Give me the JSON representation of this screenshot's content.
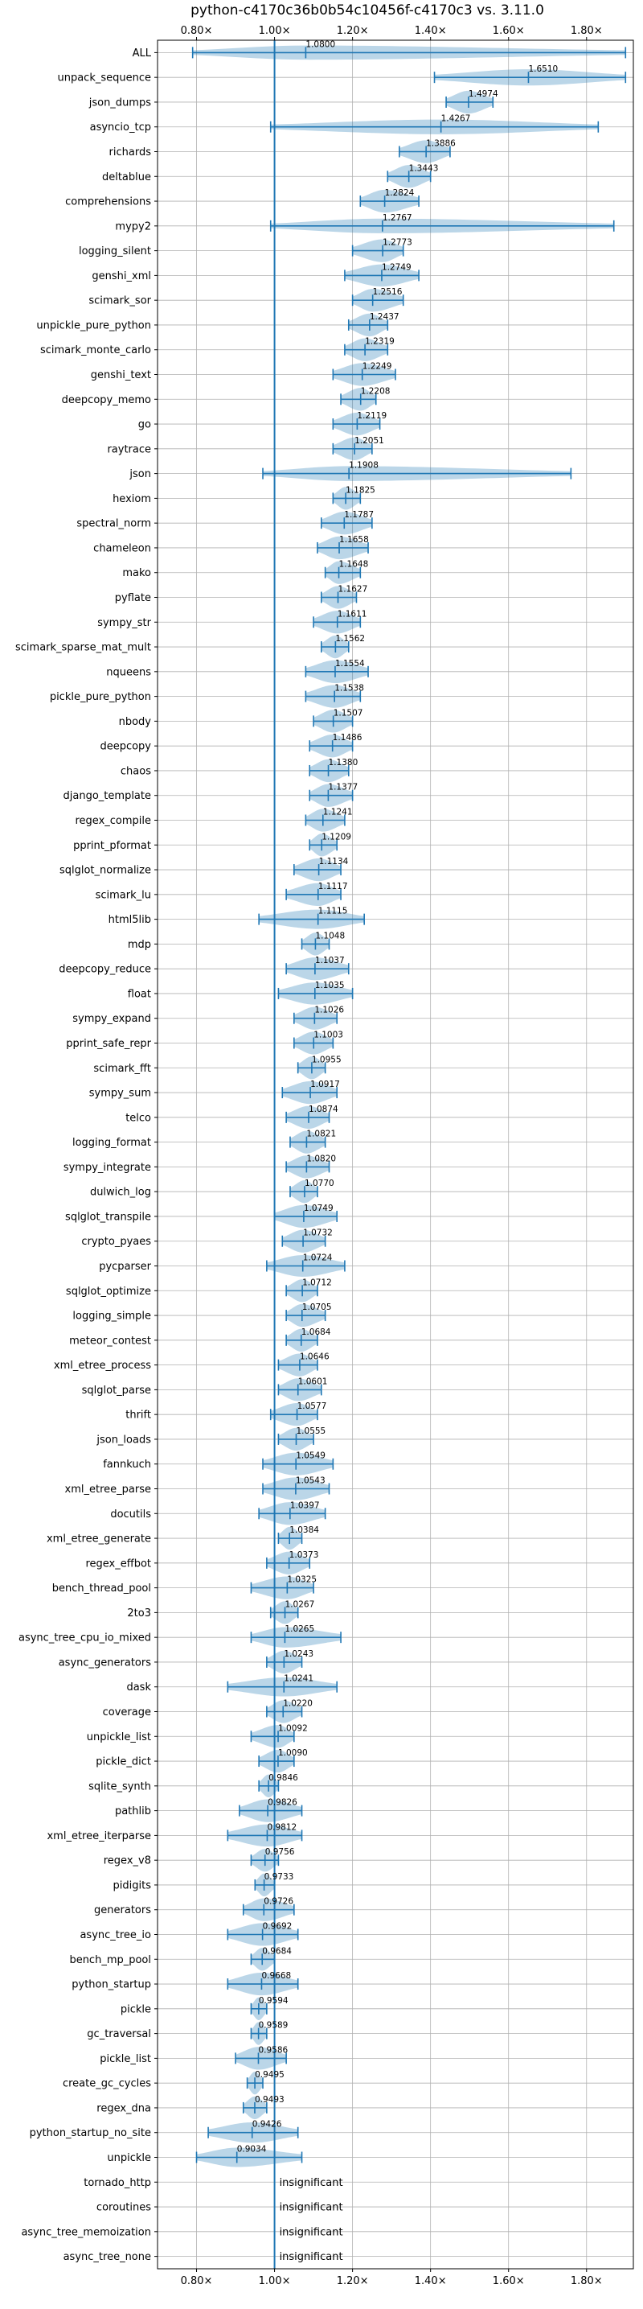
{
  "chart_data": {
    "type": "violin",
    "title": "python-c4170c36b0b54c10456f-c4170c3 vs. 3.11.0",
    "x_ticks": [
      "0.80×",
      "1.00×",
      "1.20×",
      "1.40×",
      "1.60×",
      "1.80×"
    ],
    "x_tick_values": [
      0.8,
      1.0,
      1.2,
      1.4,
      1.6,
      1.8
    ],
    "xlim": [
      0.7,
      1.92
    ],
    "reference_value": 1.0,
    "insignificant_text": "insignificant",
    "colors": {
      "violin": "#1f77b4",
      "grid": "#b0b0b0"
    },
    "benchmarks": [
      {
        "name": "ALL",
        "mean": 1.08,
        "min": 0.79,
        "max": 1.9,
        "label": "1.0800"
      },
      {
        "name": "unpack_sequence",
        "mean": 1.651,
        "min": 1.41,
        "max": 1.9,
        "label": "1.6510"
      },
      {
        "name": "json_dumps",
        "mean": 1.4974,
        "min": 1.44,
        "max": 1.56,
        "label": "1.4974"
      },
      {
        "name": "asyncio_tcp",
        "mean": 1.4267,
        "min": 0.99,
        "max": 1.83,
        "label": "1.4267"
      },
      {
        "name": "richards",
        "mean": 1.3886,
        "min": 1.32,
        "max": 1.45,
        "label": "1.3886"
      },
      {
        "name": "deltablue",
        "mean": 1.3443,
        "min": 1.29,
        "max": 1.4,
        "label": "1.3443"
      },
      {
        "name": "comprehensions",
        "mean": 1.2824,
        "min": 1.22,
        "max": 1.37,
        "label": "1.2824"
      },
      {
        "name": "mypy2",
        "mean": 1.2767,
        "min": 0.99,
        "max": 1.87,
        "label": "1.2767"
      },
      {
        "name": "logging_silent",
        "mean": 1.2773,
        "min": 1.2,
        "max": 1.33,
        "label": "1.2773"
      },
      {
        "name": "genshi_xml",
        "mean": 1.2749,
        "min": 1.18,
        "max": 1.37,
        "label": "1.2749"
      },
      {
        "name": "scimark_sor",
        "mean": 1.2516,
        "min": 1.2,
        "max": 1.33,
        "label": "1.2516"
      },
      {
        "name": "unpickle_pure_python",
        "mean": 1.2437,
        "min": 1.19,
        "max": 1.29,
        "label": "1.2437"
      },
      {
        "name": "scimark_monte_carlo",
        "mean": 1.2319,
        "min": 1.18,
        "max": 1.29,
        "label": "1.2319"
      },
      {
        "name": "genshi_text",
        "mean": 1.2249,
        "min": 1.15,
        "max": 1.31,
        "label": "1.2249"
      },
      {
        "name": "deepcopy_memo",
        "mean": 1.2208,
        "min": 1.17,
        "max": 1.26,
        "label": "1.2208"
      },
      {
        "name": "go",
        "mean": 1.2119,
        "min": 1.15,
        "max": 1.27,
        "label": "1.2119"
      },
      {
        "name": "raytrace",
        "mean": 1.2051,
        "min": 1.15,
        "max": 1.25,
        "label": "1.2051"
      },
      {
        "name": "json",
        "mean": 1.1908,
        "min": 0.97,
        "max": 1.76,
        "label": "1.1908"
      },
      {
        "name": "hexiom",
        "mean": 1.1825,
        "min": 1.15,
        "max": 1.22,
        "label": "1.1825"
      },
      {
        "name": "spectral_norm",
        "mean": 1.1787,
        "min": 1.12,
        "max": 1.25,
        "label": "1.1787"
      },
      {
        "name": "chameleon",
        "mean": 1.1658,
        "min": 1.11,
        "max": 1.24,
        "label": "1.1658"
      },
      {
        "name": "mako",
        "mean": 1.1648,
        "min": 1.13,
        "max": 1.22,
        "label": "1.1648"
      },
      {
        "name": "pyflate",
        "mean": 1.1627,
        "min": 1.12,
        "max": 1.21,
        "label": "1.1627"
      },
      {
        "name": "sympy_str",
        "mean": 1.1611,
        "min": 1.1,
        "max": 1.22,
        "label": "1.1611"
      },
      {
        "name": "scimark_sparse_mat_mult",
        "mean": 1.1562,
        "min": 1.12,
        "max": 1.19,
        "label": "1.1562"
      },
      {
        "name": "nqueens",
        "mean": 1.1554,
        "min": 1.08,
        "max": 1.24,
        "label": "1.1554"
      },
      {
        "name": "pickle_pure_python",
        "mean": 1.1538,
        "min": 1.08,
        "max": 1.22,
        "label": "1.1538"
      },
      {
        "name": "nbody",
        "mean": 1.1507,
        "min": 1.1,
        "max": 1.2,
        "label": "1.1507"
      },
      {
        "name": "deepcopy",
        "mean": 1.1486,
        "min": 1.09,
        "max": 1.2,
        "label": "1.1486"
      },
      {
        "name": "chaos",
        "mean": 1.138,
        "min": 1.09,
        "max": 1.19,
        "label": "1.1380"
      },
      {
        "name": "django_template",
        "mean": 1.1377,
        "min": 1.09,
        "max": 1.2,
        "label": "1.1377"
      },
      {
        "name": "regex_compile",
        "mean": 1.1241,
        "min": 1.08,
        "max": 1.18,
        "label": "1.1241"
      },
      {
        "name": "pprint_pformat",
        "mean": 1.1209,
        "min": 1.09,
        "max": 1.16,
        "label": "1.1209"
      },
      {
        "name": "sqlglot_normalize",
        "mean": 1.1134,
        "min": 1.05,
        "max": 1.17,
        "label": "1.1134"
      },
      {
        "name": "scimark_lu",
        "mean": 1.1117,
        "min": 1.03,
        "max": 1.17,
        "label": "1.1117"
      },
      {
        "name": "html5lib",
        "mean": 1.1115,
        "min": 0.96,
        "max": 1.23,
        "label": "1.1115"
      },
      {
        "name": "mdp",
        "mean": 1.1048,
        "min": 1.07,
        "max": 1.14,
        "label": "1.1048"
      },
      {
        "name": "deepcopy_reduce",
        "mean": 1.1037,
        "min": 1.03,
        "max": 1.19,
        "label": "1.1037"
      },
      {
        "name": "float",
        "mean": 1.1035,
        "min": 1.01,
        "max": 1.2,
        "label": "1.1035"
      },
      {
        "name": "sympy_expand",
        "mean": 1.1026,
        "min": 1.05,
        "max": 1.16,
        "label": "1.1026"
      },
      {
        "name": "pprint_safe_repr",
        "mean": 1.1003,
        "min": 1.05,
        "max": 1.15,
        "label": "1.1003"
      },
      {
        "name": "scimark_fft",
        "mean": 1.0955,
        "min": 1.06,
        "max": 1.13,
        "label": "1.0955"
      },
      {
        "name": "sympy_sum",
        "mean": 1.0917,
        "min": 1.02,
        "max": 1.16,
        "label": "1.0917"
      },
      {
        "name": "telco",
        "mean": 1.0874,
        "min": 1.03,
        "max": 1.14,
        "label": "1.0874"
      },
      {
        "name": "logging_format",
        "mean": 1.0821,
        "min": 1.04,
        "max": 1.13,
        "label": "1.0821"
      },
      {
        "name": "sympy_integrate",
        "mean": 1.082,
        "min": 1.03,
        "max": 1.14,
        "label": "1.0820"
      },
      {
        "name": "dulwich_log",
        "mean": 1.077,
        "min": 1.04,
        "max": 1.11,
        "label": "1.0770"
      },
      {
        "name": "sqlglot_transpile",
        "mean": 1.0749,
        "min": 1.0,
        "max": 1.16,
        "label": "1.0749"
      },
      {
        "name": "crypto_pyaes",
        "mean": 1.0732,
        "min": 1.02,
        "max": 1.13,
        "label": "1.0732"
      },
      {
        "name": "pycparser",
        "mean": 1.0724,
        "min": 0.98,
        "max": 1.18,
        "label": "1.0724"
      },
      {
        "name": "sqlglot_optimize",
        "mean": 1.0712,
        "min": 1.03,
        "max": 1.11,
        "label": "1.0712"
      },
      {
        "name": "logging_simple",
        "mean": 1.0705,
        "min": 1.03,
        "max": 1.13,
        "label": "1.0705"
      },
      {
        "name": "meteor_contest",
        "mean": 1.0684,
        "min": 1.03,
        "max": 1.11,
        "label": "1.0684"
      },
      {
        "name": "xml_etree_process",
        "mean": 1.0646,
        "min": 1.01,
        "max": 1.11,
        "label": "1.0646"
      },
      {
        "name": "sqlglot_parse",
        "mean": 1.0601,
        "min": 1.01,
        "max": 1.12,
        "label": "1.0601"
      },
      {
        "name": "thrift",
        "mean": 1.0577,
        "min": 0.99,
        "max": 1.11,
        "label": "1.0577"
      },
      {
        "name": "json_loads",
        "mean": 1.0555,
        "min": 1.01,
        "max": 1.1,
        "label": "1.0555"
      },
      {
        "name": "fannkuch",
        "mean": 1.0549,
        "min": 0.97,
        "max": 1.15,
        "label": "1.0549"
      },
      {
        "name": "xml_etree_parse",
        "mean": 1.0543,
        "min": 0.97,
        "max": 1.14,
        "label": "1.0543"
      },
      {
        "name": "docutils",
        "mean": 1.0397,
        "min": 0.96,
        "max": 1.13,
        "label": "1.0397"
      },
      {
        "name": "xml_etree_generate",
        "mean": 1.0384,
        "min": 1.01,
        "max": 1.07,
        "label": "1.0384"
      },
      {
        "name": "regex_effbot",
        "mean": 1.0373,
        "min": 0.98,
        "max": 1.09,
        "label": "1.0373"
      },
      {
        "name": "bench_thread_pool",
        "mean": 1.0325,
        "min": 0.94,
        "max": 1.1,
        "label": "1.0325"
      },
      {
        "name": "2to3",
        "mean": 1.0267,
        "min": 0.99,
        "max": 1.06,
        "label": "1.0267"
      },
      {
        "name": "async_tree_cpu_io_mixed",
        "mean": 1.0265,
        "min": 0.94,
        "max": 1.17,
        "label": "1.0265"
      },
      {
        "name": "async_generators",
        "mean": 1.0243,
        "min": 0.98,
        "max": 1.07,
        "label": "1.0243"
      },
      {
        "name": "dask",
        "mean": 1.0241,
        "min": 0.88,
        "max": 1.16,
        "label": "1.0241"
      },
      {
        "name": "coverage",
        "mean": 1.022,
        "min": 0.98,
        "max": 1.07,
        "label": "1.0220"
      },
      {
        "name": "unpickle_list",
        "mean": 1.0092,
        "min": 0.94,
        "max": 1.05,
        "label": "1.0092"
      },
      {
        "name": "pickle_dict",
        "mean": 1.009,
        "min": 0.96,
        "max": 1.05,
        "label": "1.0090"
      },
      {
        "name": "sqlite_synth",
        "mean": 0.9846,
        "min": 0.96,
        "max": 1.01,
        "label": "0.9846"
      },
      {
        "name": "pathlib",
        "mean": 0.9826,
        "min": 0.91,
        "max": 1.07,
        "label": "0.9826"
      },
      {
        "name": "xml_etree_iterparse",
        "mean": 0.9812,
        "min": 0.88,
        "max": 1.07,
        "label": "0.9812"
      },
      {
        "name": "regex_v8",
        "mean": 0.9756,
        "min": 0.94,
        "max": 1.01,
        "label": "0.9756"
      },
      {
        "name": "pidigits",
        "mean": 0.9733,
        "min": 0.95,
        "max": 1.0,
        "label": "0.9733"
      },
      {
        "name": "generators",
        "mean": 0.9726,
        "min": 0.92,
        "max": 1.05,
        "label": "0.9726"
      },
      {
        "name": "async_tree_io",
        "mean": 0.9692,
        "min": 0.88,
        "max": 1.06,
        "label": "0.9692"
      },
      {
        "name": "bench_mp_pool",
        "mean": 0.9684,
        "min": 0.94,
        "max": 1.0,
        "label": "0.9684"
      },
      {
        "name": "python_startup",
        "mean": 0.9668,
        "min": 0.88,
        "max": 1.06,
        "label": "0.9668"
      },
      {
        "name": "pickle",
        "mean": 0.9594,
        "min": 0.94,
        "max": 0.98,
        "label": "0.9594"
      },
      {
        "name": "gc_traversal",
        "mean": 0.9589,
        "min": 0.94,
        "max": 0.98,
        "label": "0.9589"
      },
      {
        "name": "pickle_list",
        "mean": 0.9586,
        "min": 0.9,
        "max": 1.03,
        "label": "0.9586"
      },
      {
        "name": "create_gc_cycles",
        "mean": 0.9495,
        "min": 0.93,
        "max": 0.97,
        "label": "0.9495"
      },
      {
        "name": "regex_dna",
        "mean": 0.9493,
        "min": 0.92,
        "max": 0.98,
        "label": "0.9493"
      },
      {
        "name": "python_startup_no_site",
        "mean": 0.9426,
        "min": 0.83,
        "max": 1.06,
        "label": "0.9426"
      },
      {
        "name": "unpickle",
        "mean": 0.9034,
        "min": 0.8,
        "max": 1.07,
        "label": "0.9034"
      },
      {
        "name": "tornado_http",
        "insignificant": true
      },
      {
        "name": "coroutines",
        "insignificant": true
      },
      {
        "name": "async_tree_memoization",
        "insignificant": true
      },
      {
        "name": "async_tree_none",
        "insignificant": true
      }
    ]
  }
}
